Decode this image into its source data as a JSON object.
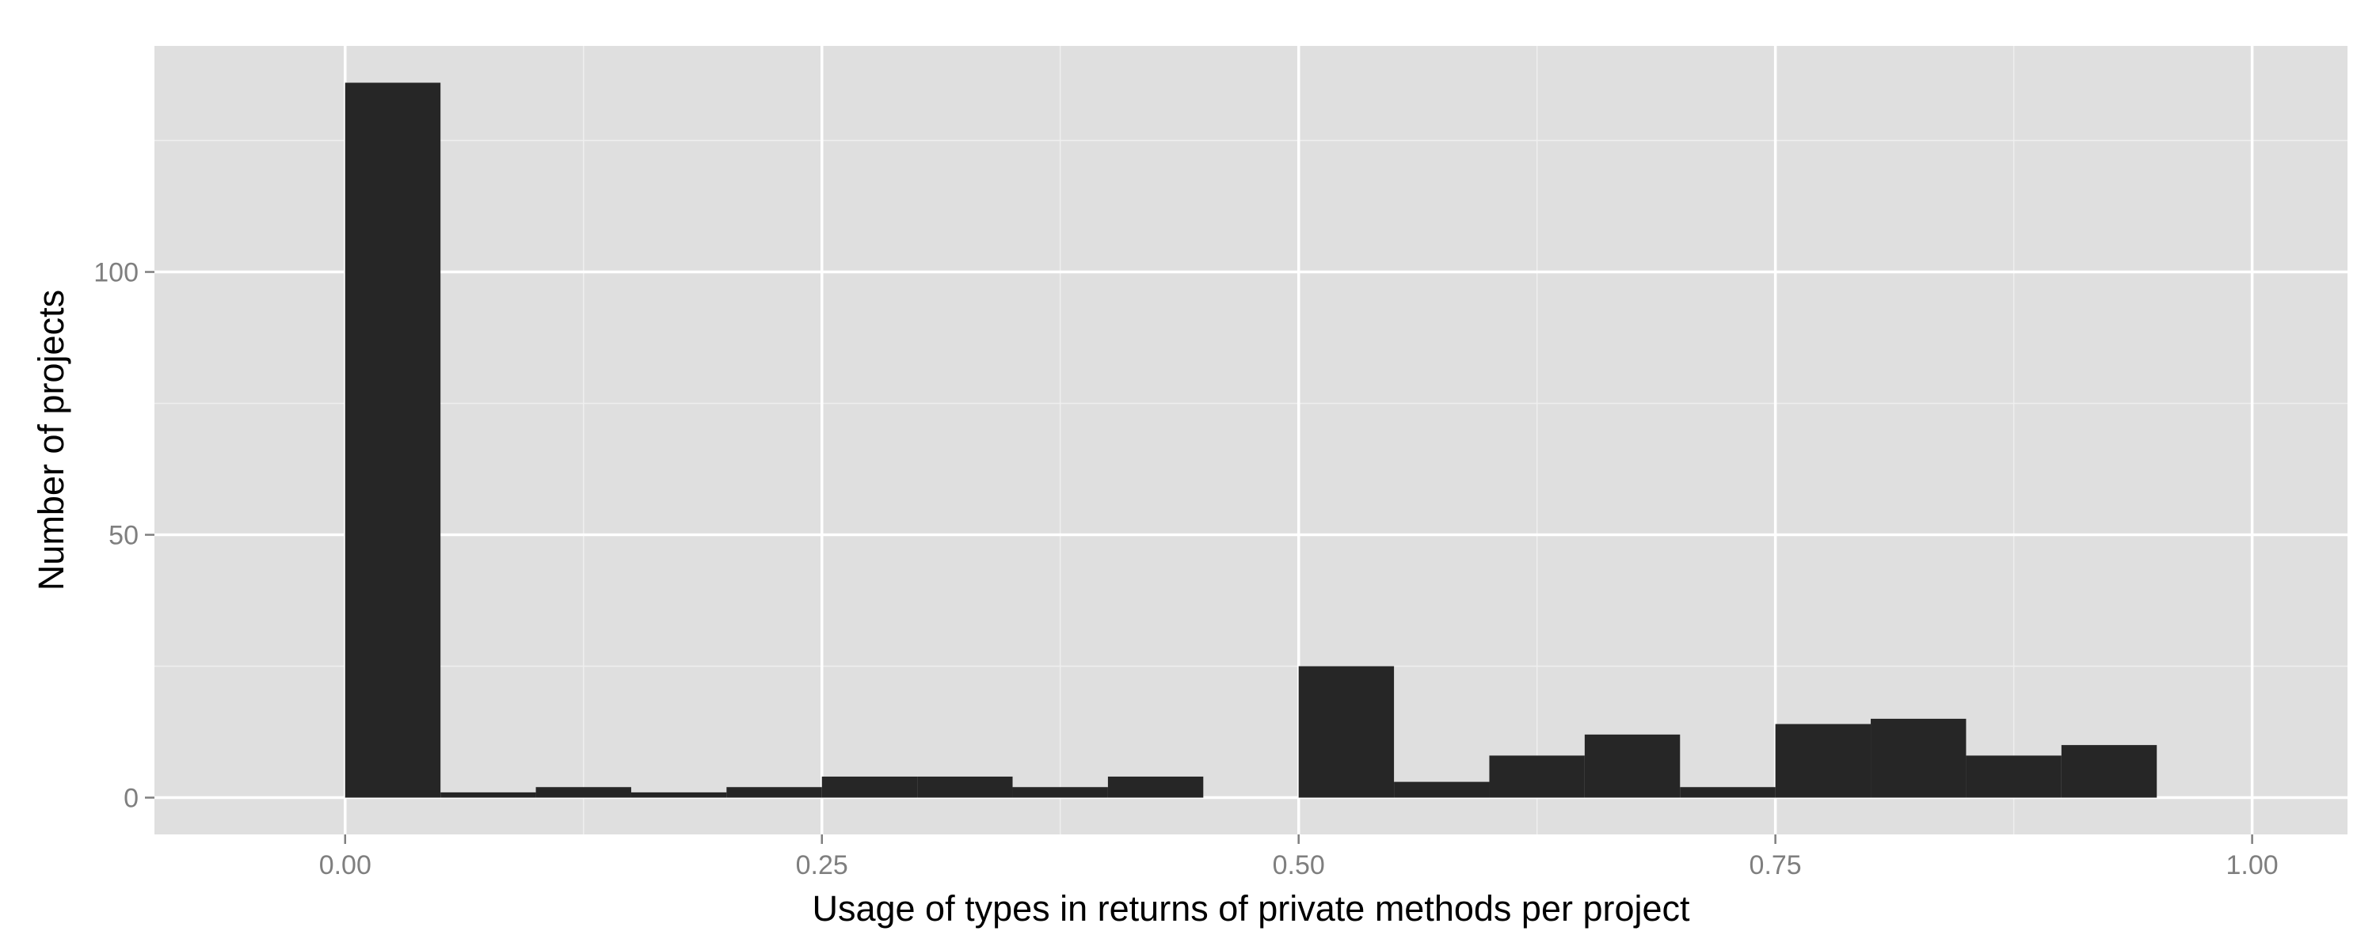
{
  "chart_data": {
    "type": "bar",
    "subtype": "histogram",
    "title": "",
    "xlabel": "Usage of types in returns of private methods per project",
    "ylabel": "Number of projects",
    "xlim": [
      -0.1,
      1.05
    ],
    "ylim": [
      -7,
      143
    ],
    "grid": true,
    "legend": "none",
    "bin_width": 0.05,
    "bins": [
      {
        "x0": 0.0,
        "x1": 0.05,
        "count": 136
      },
      {
        "x0": 0.05,
        "x1": 0.1,
        "count": 1
      },
      {
        "x0": 0.1,
        "x1": 0.15,
        "count": 2
      },
      {
        "x0": 0.15,
        "x1": 0.2,
        "count": 1
      },
      {
        "x0": 0.2,
        "x1": 0.25,
        "count": 2
      },
      {
        "x0": 0.25,
        "x1": 0.3,
        "count": 4
      },
      {
        "x0": 0.3,
        "x1": 0.35,
        "count": 4
      },
      {
        "x0": 0.35,
        "x1": 0.4,
        "count": 2
      },
      {
        "x0": 0.4,
        "x1": 0.45,
        "count": 4
      },
      {
        "x0": 0.45,
        "x1": 0.5,
        "count": 0
      },
      {
        "x0": 0.5,
        "x1": 0.55,
        "count": 25
      },
      {
        "x0": 0.55,
        "x1": 0.6,
        "count": 3
      },
      {
        "x0": 0.6,
        "x1": 0.65,
        "count": 8
      },
      {
        "x0": 0.65,
        "x1": 0.7,
        "count": 12
      },
      {
        "x0": 0.7,
        "x1": 0.75,
        "count": 2
      },
      {
        "x0": 0.75,
        "x1": 0.8,
        "count": 14
      },
      {
        "x0": 0.8,
        "x1": 0.85,
        "count": 15
      },
      {
        "x0": 0.85,
        "x1": 0.9,
        "count": 8
      },
      {
        "x0": 0.9,
        "x1": 0.95,
        "count": 10
      }
    ],
    "x_ticks": [
      {
        "value": 0.0,
        "label": "0.00"
      },
      {
        "value": 0.25,
        "label": "0.25"
      },
      {
        "value": 0.5,
        "label": "0.50"
      },
      {
        "value": 0.75,
        "label": "0.75"
      },
      {
        "value": 1.0,
        "label": "1.00"
      }
    ],
    "y_ticks": [
      {
        "value": 0,
        "label": "0"
      },
      {
        "value": 50,
        "label": "50"
      },
      {
        "value": 100,
        "label": "100"
      }
    ],
    "x_minor_ticks": [
      0.125,
      0.375,
      0.625,
      0.875
    ],
    "y_minor_ticks": [
      25,
      75,
      125
    ],
    "colors": {
      "panel_background": "#dfdfdf",
      "grid_major": "#ffffff",
      "grid_minor": "#efefef",
      "bar_fill": "#262626",
      "tick_mark": "#7f7f7f"
    }
  }
}
